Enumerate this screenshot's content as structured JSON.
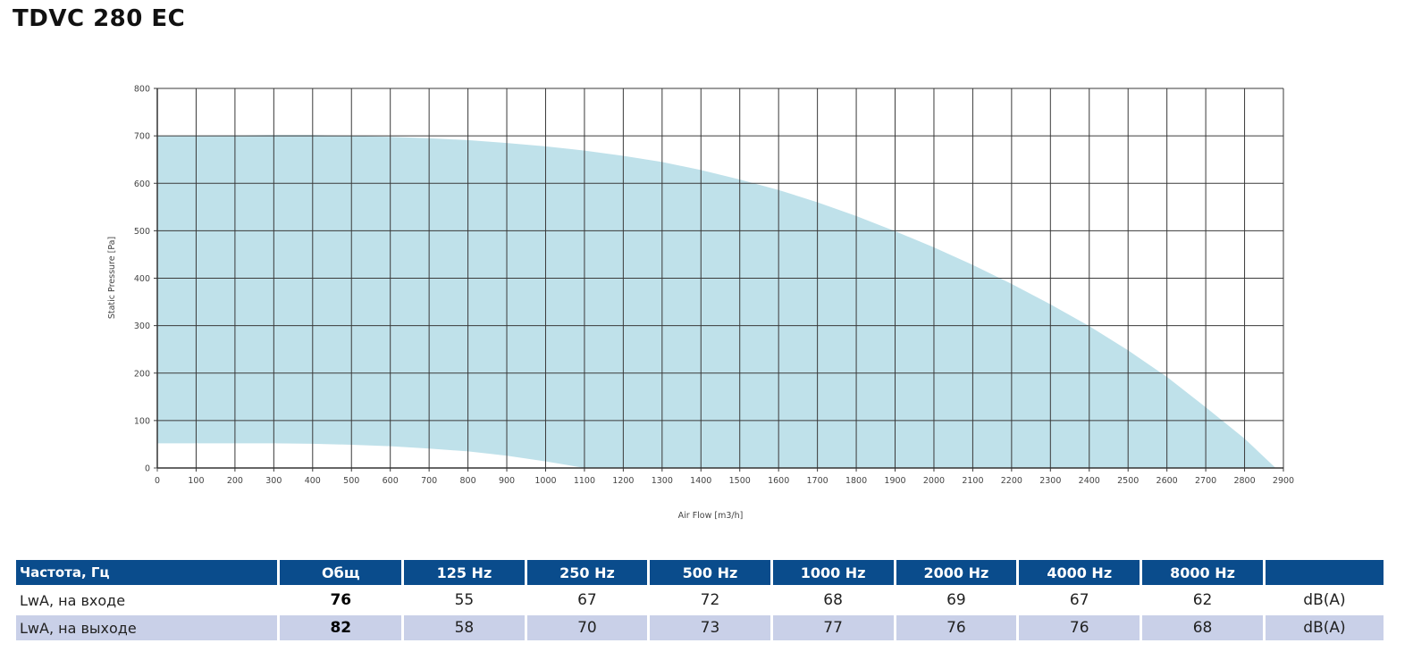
{
  "title": "TDVC 280 EC",
  "chart_data": {
    "type": "area",
    "xlabel": "Air Flow [m3/h]",
    "ylabel": "Static Pressure [Pa]",
    "xlim": [
      0,
      2900
    ],
    "ylim": [
      0,
      800
    ],
    "xticks": [
      "0",
      "100",
      "200",
      "300",
      "400",
      "500",
      "600",
      "700",
      "800",
      "900",
      "1000",
      "1100",
      "1200",
      "1300",
      "1400",
      "1500",
      "1600",
      "1700",
      "1800",
      "1900",
      "2000",
      "2100",
      "2200",
      "2300",
      "2400",
      "2500",
      "2600",
      "2700",
      "2800",
      "2900"
    ],
    "yticks": [
      "0",
      "100",
      "200",
      "300",
      "400",
      "500",
      "600",
      "700",
      "800"
    ],
    "grid": true,
    "fill_color": "#bfe1ea",
    "upper_curve": {
      "x": [
        0,
        200,
        300,
        400,
        500,
        600,
        700,
        800,
        900,
        1000,
        1100,
        1200,
        1300,
        1400,
        1500,
        1600,
        1700,
        1800,
        1900,
        2000,
        2100,
        2200,
        2300,
        2400,
        2500,
        2600,
        2700,
        2800,
        2880
      ],
      "y": [
        700,
        701,
        702,
        702,
        700,
        698,
        695,
        691,
        685,
        678,
        669,
        658,
        645,
        628,
        608,
        586,
        560,
        531,
        499,
        465,
        428,
        388,
        345,
        299,
        248,
        192,
        128,
        62,
        0
      ]
    },
    "lower_curve": {
      "x": [
        0,
        300,
        400,
        500,
        600,
        700,
        800,
        900,
        1000,
        1100
      ],
      "y": [
        52,
        52,
        51,
        49,
        46,
        41,
        35,
        26,
        14,
        0
      ]
    }
  },
  "table": {
    "headers": [
      "Частота, Гц",
      "Общ",
      "125 Hz",
      "250 Hz",
      "500 Hz",
      "1000 Hz",
      "2000 Hz",
      "4000 Hz",
      "8000 Hz",
      ""
    ],
    "rows": [
      {
        "label": "LwA, на входе",
        "total": "76",
        "values": [
          "55",
          "67",
          "72",
          "68",
          "69",
          "67",
          "62"
        ],
        "unit": "dB(A)"
      },
      {
        "label": "LwA, на выходе",
        "total": "82",
        "values": [
          "58",
          "70",
          "73",
          "77",
          "76",
          "76",
          "68"
        ],
        "unit": "dB(A)"
      }
    ],
    "header_color": "#0a4c8c",
    "alt_row_color": "#c9d0e8"
  }
}
